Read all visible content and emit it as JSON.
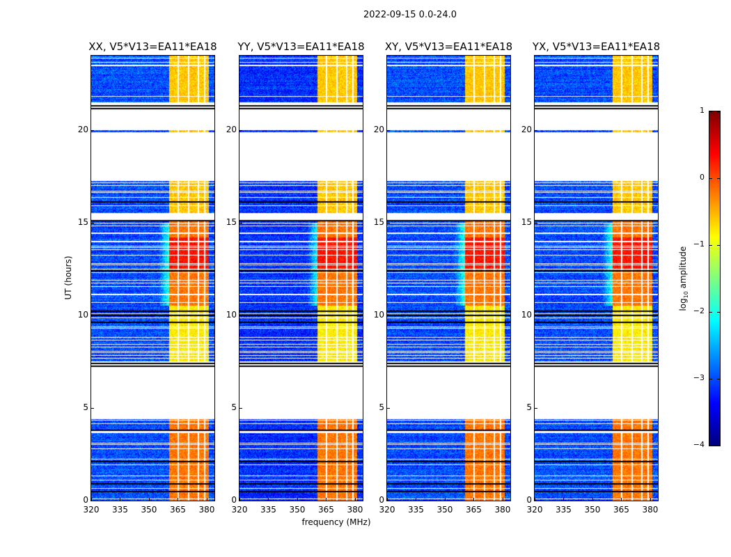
{
  "chart_data": {
    "type": "heatmap",
    "title": "2022-09-15 0.0-24.0",
    "xlabel": "frequency (MHz)",
    "ylabel": "UT (hours)",
    "xlim": [
      320,
      384
    ],
    "ylim": [
      0,
      24
    ],
    "xticks": [
      "320",
      "335",
      "350",
      "365",
      "380"
    ],
    "yticks": [
      "0",
      "5",
      "10",
      "15",
      "20"
    ],
    "panels": [
      {
        "title": "XX, V5*V13=EA11*EA18",
        "pol": "XX"
      },
      {
        "title": "YY, V5*V13=EA11*EA18",
        "pol": "YY"
      },
      {
        "title": "XY, V5*V13=EA11*EA18",
        "pol": "XY"
      },
      {
        "title": "YX, V5*V13=EA11*EA18",
        "pol": "YX"
      }
    ],
    "colorbar": {
      "label_prefix": "log",
      "label_sub": "10",
      "label_suffix": " amplitude",
      "colormap": "jet",
      "range": [
        -4,
        1
      ],
      "ticks": [
        "1",
        "0",
        "−1",
        "−2",
        "−3",
        "−4"
      ]
    },
    "data_time_segments_hours": [
      [
        0,
        4.4
      ],
      [
        7.5,
        8.7
      ],
      [
        8.7,
        15.1
      ],
      [
        15.5,
        17.3
      ],
      [
        19.85,
        20.0
      ],
      [
        21.5,
        24
      ]
    ],
    "flag_lines_hours": [
      0.5,
      0.9,
      2.1,
      3.8,
      7.25,
      7.4,
      9.6,
      10.0,
      10.2,
      12.4,
      15.1,
      16.1,
      21.15,
      21.3
    ],
    "background_log_amplitude": -3.0,
    "rfi_band_mhz": [
      360.5,
      381
    ],
    "rfi_gaps_mhz": [
      365.3,
      370.6,
      375.6,
      379.0
    ],
    "rfi_levels": [
      {
        "hours": [
          0,
          4.4
        ],
        "log_amplitude": -0.2
      },
      {
        "hours": [
          7.5,
          10.5
        ],
        "log_amplitude": -0.8
      },
      {
        "hours": [
          10.5,
          15.1
        ],
        "log_amplitude": -0.2
      },
      {
        "hours": [
          12.5,
          14.2
        ],
        "log_amplitude": 0.3
      },
      {
        "hours": [
          15.5,
          24
        ],
        "log_amplitude": -0.6
      }
    ]
  }
}
